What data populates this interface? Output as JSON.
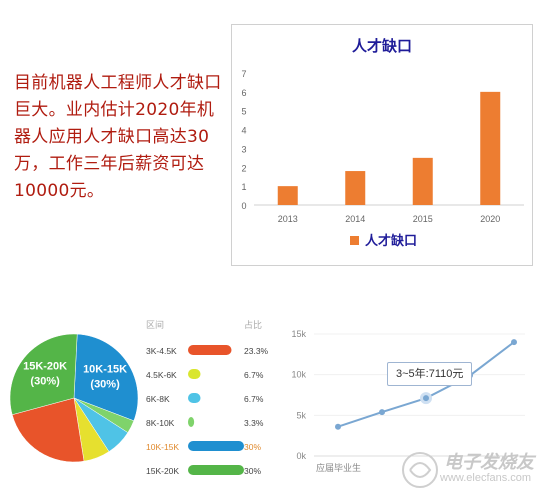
{
  "intro_text": "目前机器人工程师人才缺口巨大。业内估计2020年机器人应用人才缺口高达30万，工作三年后薪资可达10000元。",
  "colors": {
    "intro": "#b01c10",
    "bar": "#ed7d31",
    "title": "#1f1c99",
    "pie_blue": "#1f8fd0",
    "line": "#7aa7d2"
  },
  "chart_data": [
    {
      "type": "bar",
      "title": "人才缺口",
      "categories": [
        "2013",
        "2014",
        "2015",
        "2020"
      ],
      "series": [
        {
          "name": "人才缺口",
          "values": [
            1,
            1.8,
            2.5,
            6
          ]
        }
      ],
      "ylim": [
        0,
        7
      ],
      "yticks": [
        "0",
        "1",
        "2",
        "3",
        "4",
        "5",
        "6",
        "7"
      ],
      "grid": false,
      "legend": "bottom"
    },
    {
      "type": "pie",
      "slices": [
        {
          "label": "10K-15K (30%)",
          "value": 30,
          "color": "#1f8fd0"
        },
        {
          "label": "",
          "value": 3.3,
          "color": "#7fd36b"
        },
        {
          "label": "",
          "value": 6.7,
          "color": "#4fc3e6"
        },
        {
          "label": "",
          "value": 6.7,
          "color": "#e6e02f"
        },
        {
          "label": "",
          "value": 23.3,
          "color": "#e8542a"
        },
        {
          "label": "15K-20K (30%)",
          "value": 30,
          "color": "#54b548"
        }
      ]
    },
    {
      "type": "table",
      "headers": [
        "区间",
        "占比"
      ],
      "rows": [
        {
          "range": "3K-4.5K",
          "pct": "23.3%",
          "value": 23.3,
          "color": "#e8542a",
          "highlight": false
        },
        {
          "range": "4.5K-6K",
          "pct": "6.7%",
          "value": 6.7,
          "color": "#d9e62f",
          "highlight": false
        },
        {
          "range": "6K-8K",
          "pct": "6.7%",
          "value": 6.7,
          "color": "#4fc3e6",
          "highlight": false
        },
        {
          "range": "8K-10K",
          "pct": "3.3%",
          "value": 3.3,
          "color": "#7fd36b",
          "highlight": false
        },
        {
          "range": "10K-15K",
          "pct": "30%",
          "value": 30,
          "color": "#1f8fd0",
          "highlight": true
        },
        {
          "range": "15K-20K",
          "pct": "30%",
          "value": 30,
          "color": "#54b548",
          "highlight": false
        }
      ]
    },
    {
      "type": "line",
      "yticks": [
        "0k",
        "5k",
        "10k",
        "15k"
      ],
      "ylim": [
        0,
        15000
      ],
      "xlabel_first": "应届毕业生",
      "y": [
        3600,
        5400,
        7110,
        9900,
        14000
      ],
      "tooltip": "3~5年:7110元",
      "tooltip_index": 2
    }
  ],
  "watermark": {
    "text": "电子发烧友",
    "url": "www.elecfans.com"
  }
}
